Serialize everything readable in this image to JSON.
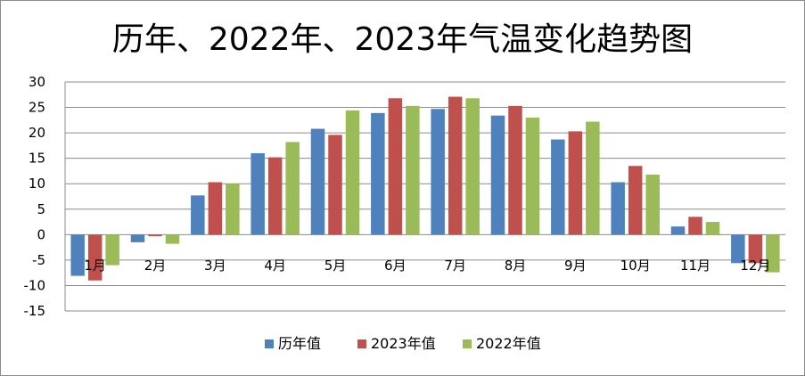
{
  "chart_data": {
    "type": "bar",
    "title": "历年、2022年、2023年气温变化趋势图",
    "categories": [
      "1月",
      "2月",
      "3月",
      "4月",
      "5月",
      "6月",
      "7月",
      "8月",
      "9月",
      "10月",
      "11月",
      "12月"
    ],
    "series": [
      {
        "name": "历年值",
        "color": "#4f81bd",
        "values": [
          -8.1,
          -1.5,
          7.7,
          16.0,
          20.8,
          23.9,
          24.7,
          23.4,
          18.7,
          10.3,
          1.6,
          -5.6
        ]
      },
      {
        "name": "2023年值",
        "color": "#c0504d",
        "values": [
          -9.0,
          -0.3,
          10.3,
          15.2,
          19.6,
          26.8,
          27.1,
          25.3,
          20.3,
          13.5,
          3.5,
          -5.6
        ]
      },
      {
        "name": "2022年值",
        "color": "#9bbb59",
        "values": [
          -6.0,
          -1.8,
          10.0,
          18.2,
          24.4,
          25.3,
          26.8,
          23.0,
          22.2,
          11.8,
          2.5,
          -7.4
        ]
      }
    ],
    "yticks": [
      "30",
      "25",
      "20",
      "15",
      "10",
      "5",
      "0",
      "-5",
      "-10",
      "-15"
    ],
    "ylim": [
      -15,
      30
    ],
    "grid": true,
    "legend_position": "bottom"
  }
}
